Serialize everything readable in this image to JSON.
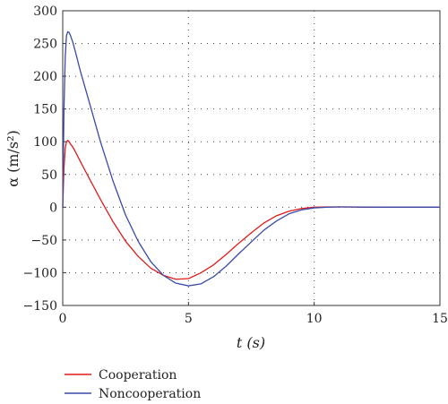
{
  "colors": {
    "series_a": "#e01b1b",
    "series_b": "#3a4aa8",
    "grid": "#444444",
    "axis": "#333333"
  },
  "chart_data": {
    "type": "line",
    "xlabel": "t (s)",
    "ylabel": "α (m/s²)",
    "xlim": [
      0,
      15
    ],
    "ylim": [
      -150,
      300
    ],
    "xticks": [
      0,
      5,
      10,
      15
    ],
    "yticks": [
      -150,
      -100,
      -50,
      0,
      50,
      100,
      150,
      200,
      250,
      300
    ],
    "grid": "dotted",
    "legend_position": "below",
    "series": [
      {
        "name": "Cooperation",
        "color": "#e01b1b",
        "x": [
          0,
          0.05,
          0.1,
          0.15,
          0.2,
          0.25,
          0.3,
          0.4,
          0.5,
          0.7,
          1.0,
          1.5,
          2.0,
          2.5,
          3.0,
          3.5,
          4.0,
          4.5,
          5.0,
          5.5,
          6.0,
          6.5,
          7.0,
          7.5,
          8.0,
          8.5,
          9.0,
          9.5,
          10.0,
          10.5,
          11.0,
          11.5,
          12.0,
          13.0,
          14.0,
          15.0
        ],
        "y": [
          0,
          60,
          90,
          100,
          102,
          100,
          97,
          92,
          85,
          70,
          48,
          12,
          -22,
          -52,
          -75,
          -93,
          -104,
          -110,
          -109,
          -100,
          -88,
          -72,
          -55,
          -39,
          -24,
          -13,
          -6,
          -2,
          0,
          0.5,
          0.5,
          0.3,
          0,
          0,
          0,
          0
        ]
      },
      {
        "name": "Noncooperation",
        "color": "#3a4aa8",
        "x": [
          0,
          0.05,
          0.1,
          0.15,
          0.2,
          0.25,
          0.3,
          0.4,
          0.5,
          0.7,
          1.0,
          1.5,
          2.0,
          2.5,
          3.0,
          3.5,
          4.0,
          4.5,
          5.0,
          5.5,
          6.0,
          6.5,
          7.0,
          7.5,
          8.0,
          8.5,
          9.0,
          9.5,
          10.0,
          10.5,
          11.0,
          11.5,
          12.0,
          13.0,
          14.0,
          15.0
        ],
        "y": [
          0,
          150,
          230,
          262,
          268,
          267,
          263,
          252,
          238,
          208,
          168,
          100,
          40,
          -12,
          -52,
          -83,
          -104,
          -116,
          -120,
          -117,
          -106,
          -90,
          -71,
          -53,
          -35,
          -21,
          -10,
          -4,
          -1,
          0,
          0.5,
          0.5,
          0.2,
          0,
          0,
          0
        ]
      }
    ]
  }
}
